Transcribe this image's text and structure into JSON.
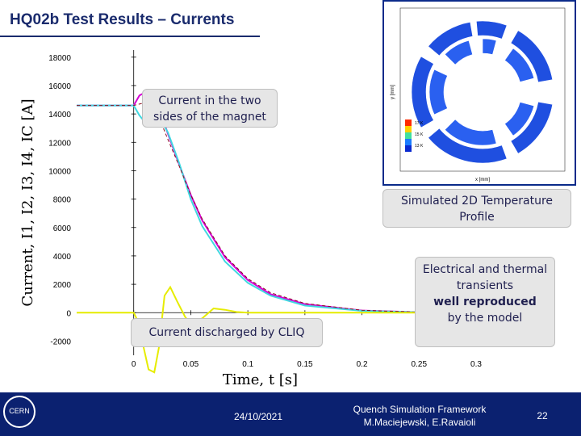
{
  "slide": {
    "title": "HQ02b Test Results – Currents",
    "callouts": {
      "sides": "Current in the two sides of the magnet",
      "sim2d": "Simulated 2D Temperature Profile",
      "transients_1": "Electrical and thermal transients",
      "transients_bold": "well reproduced",
      "transients_2": "by the model",
      "cliq": "Current discharged by CLIQ"
    },
    "footer": {
      "date": "24/10/2021",
      "subtitle_1": "Quench Simulation Framework",
      "subtitle_2": "M.Maciejewski, E.Ravaioli",
      "page": "22",
      "logo_text": "CERN"
    },
    "colors": {
      "title": "#1a2b6d",
      "footer_bg": "#0b2170",
      "series_magenta": "#d400d4",
      "series_cyan": "#40d8e0",
      "series_yellow": "#e6ec00",
      "series_darkred": "#8a1020"
    }
  },
  "chart_data": [
    {
      "type": "line",
      "xlabel": "Time, t [s]",
      "ylabel": "Current, I1, I2, I3, I4, IC [A]",
      "xlim": [
        -0.05,
        0.3
      ],
      "ylim": [
        -3000,
        18500
      ],
      "xticks": [
        0,
        0.05,
        0.1,
        0.15,
        0.2,
        0.25,
        0.3
      ],
      "xtick_labels": [
        "0",
        "0.05",
        "0.1",
        "0.15",
        "0.2",
        "0.25",
        "0.3"
      ],
      "yticks": [
        -2000,
        0,
        2000,
        4000,
        6000,
        8000,
        10000,
        12000,
        14000,
        16000,
        18000
      ],
      "ytick_labels": [
        "-2000",
        "0",
        "2000",
        "4000",
        "6000",
        "8000",
        "10000",
        "12000",
        "14000",
        "16000",
        "18000"
      ],
      "grid": false,
      "series": [
        {
          "color_key": "series_magenta",
          "x": [
            -0.05,
            0.0,
            0.005,
            0.012,
            0.02,
            0.03,
            0.04,
            0.05,
            0.06,
            0.08,
            0.1,
            0.12,
            0.15,
            0.2,
            0.25,
            0.3
          ],
          "y": [
            14600,
            14600,
            15300,
            15600,
            14900,
            12600,
            10400,
            8300,
            6500,
            3900,
            2300,
            1300,
            600,
            150,
            30,
            0
          ]
        },
        {
          "color_key": "series_cyan",
          "x": [
            -0.05,
            0.0,
            0.005,
            0.012,
            0.02,
            0.025,
            0.03,
            0.04,
            0.05,
            0.06,
            0.08,
            0.1,
            0.12,
            0.15,
            0.2,
            0.25,
            0.3
          ],
          "y": [
            14600,
            14600,
            13900,
            13200,
            13300,
            13400,
            12700,
            10500,
            8000,
            6100,
            3600,
            2100,
            1200,
            500,
            130,
            25,
            0
          ]
        },
        {
          "color_key": "series_darkred",
          "x": [
            -0.05,
            0.0,
            0.01,
            0.02,
            0.03,
            0.04,
            0.05,
            0.06,
            0.08,
            0.1,
            0.12,
            0.15,
            0.2,
            0.25,
            0.3
          ],
          "y": [
            14600,
            14600,
            14800,
            14200,
            12200,
            10300,
            8300,
            6600,
            4000,
            2400,
            1400,
            650,
            170,
            35,
            0
          ]
        },
        {
          "color_key": "series_yellow",
          "x": [
            -0.05,
            0.0,
            0.003,
            0.008,
            0.013,
            0.018,
            0.022,
            0.027,
            0.032,
            0.038,
            0.045,
            0.05,
            0.06,
            0.07,
            0.08,
            0.09,
            0.1,
            0.15,
            0.2,
            0.3
          ],
          "y": [
            0,
            0,
            -500,
            -2200,
            -4000,
            -4200,
            -2500,
            1200,
            1800,
            800,
            -300,
            -800,
            -400,
            300,
            200,
            50,
            0,
            0,
            0,
            0
          ]
        }
      ]
    },
    {
      "type": "heatmap",
      "xlabel": "x [mm]",
      "ylabel": "y [mm]",
      "colorbar_labels": [
        "17 K",
        "15 K",
        "13 K"
      ]
    }
  ]
}
